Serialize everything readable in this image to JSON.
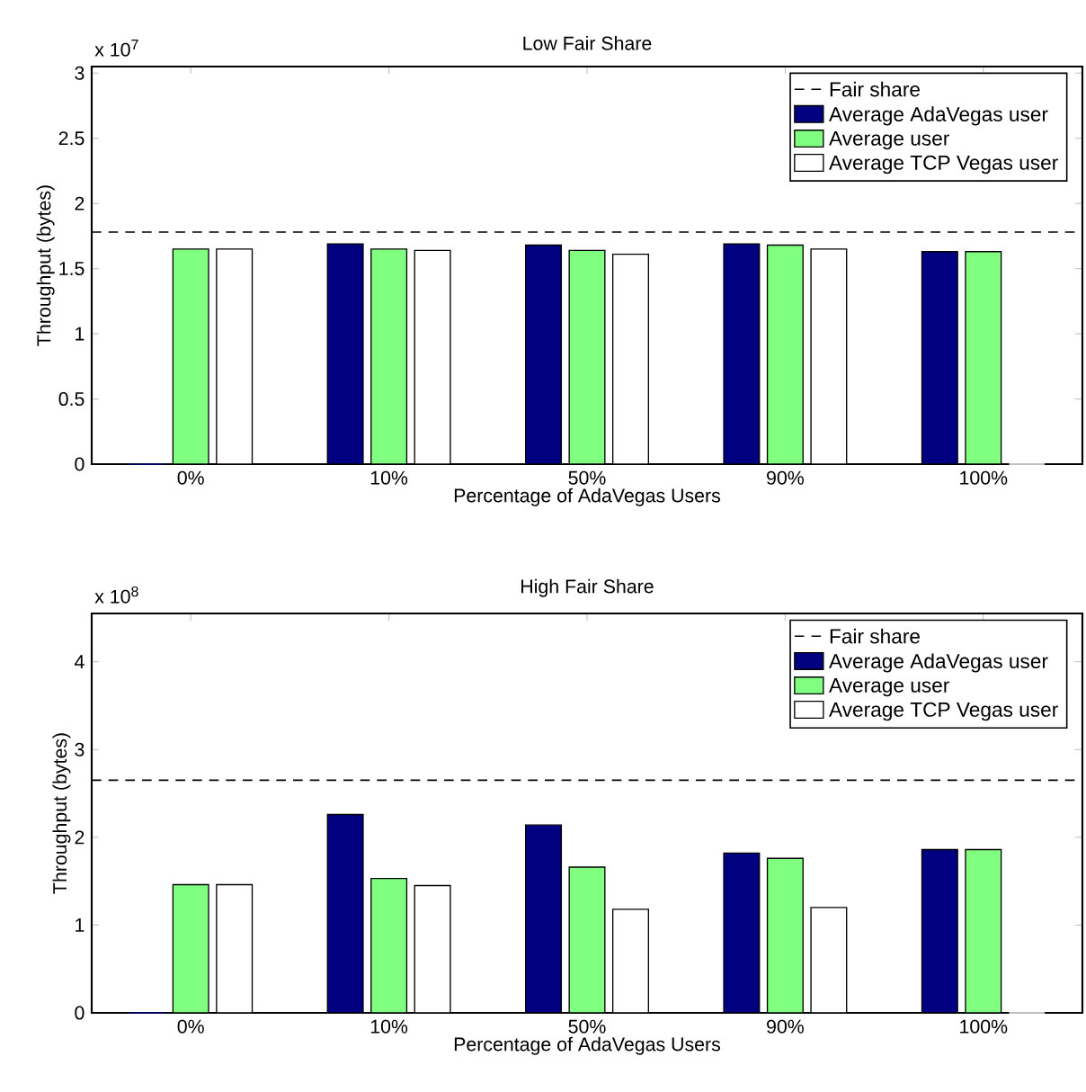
{
  "chart_data": [
    {
      "type": "bar",
      "title": "Low Fair Share",
      "xlabel": "Percentage of AdaVegas Users",
      "ylabel": "Throughput (bytes)",
      "categories": [
        "0%",
        "10%",
        "50%",
        "90%",
        "100%"
      ],
      "series": [
        {
          "name": "Average AdaVegas user",
          "color": "#000080",
          "values": [
            0,
            1.69,
            1.68,
            1.69,
            1.63
          ]
        },
        {
          "name": "Average user",
          "color": "#80ff80",
          "values": [
            1.65,
            1.65,
            1.64,
            1.68,
            1.63
          ]
        },
        {
          "name": "Average TCP Vegas user",
          "color": "#ffffff",
          "values": [
            1.65,
            1.64,
            1.61,
            1.65,
            0
          ]
        }
      ],
      "ylim": [
        0,
        3.05
      ],
      "yticks": [
        0,
        0.5,
        1,
        1.5,
        2,
        2.5,
        3
      ],
      "ref_lines": [
        {
          "axis": "y",
          "value": 1.78,
          "label": "Fair share",
          "line_style": "dashed",
          "color": "#000000"
        }
      ],
      "legend": "top right",
      "annotations": [
        "x 10$^{7}$"
      ]
    },
    {
      "type": "bar",
      "title": "High Fair Share",
      "xlabel": "Percentage of AdaVegas Users",
      "ylabel": "Throughput (bytes)",
      "categories": [
        "0%",
        "10%",
        "50%",
        "90%",
        "100%"
      ],
      "series": [
        {
          "name": "Average AdaVegas user",
          "color": "#000080",
          "values": [
            0,
            2.26,
            2.14,
            1.82,
            1.86
          ]
        },
        {
          "name": "Average user",
          "color": "#80ff80",
          "values": [
            1.46,
            1.53,
            1.66,
            1.76,
            1.86
          ]
        },
        {
          "name": "Average TCP Vegas user",
          "color": "#ffffff",
          "values": [
            1.46,
            1.45,
            1.18,
            1.2,
            0
          ]
        }
      ],
      "ylim": [
        0,
        4.55
      ],
      "yticks": [
        0,
        1,
        2,
        3,
        4
      ],
      "ref_lines": [
        {
          "axis": "y",
          "value": 2.65,
          "label": "Fair share",
          "line_style": "dashed",
          "color": "#000000"
        }
      ],
      "legend": "top right",
      "annotations": [
        "x 10$^{8}$"
      ]
    }
  ]
}
